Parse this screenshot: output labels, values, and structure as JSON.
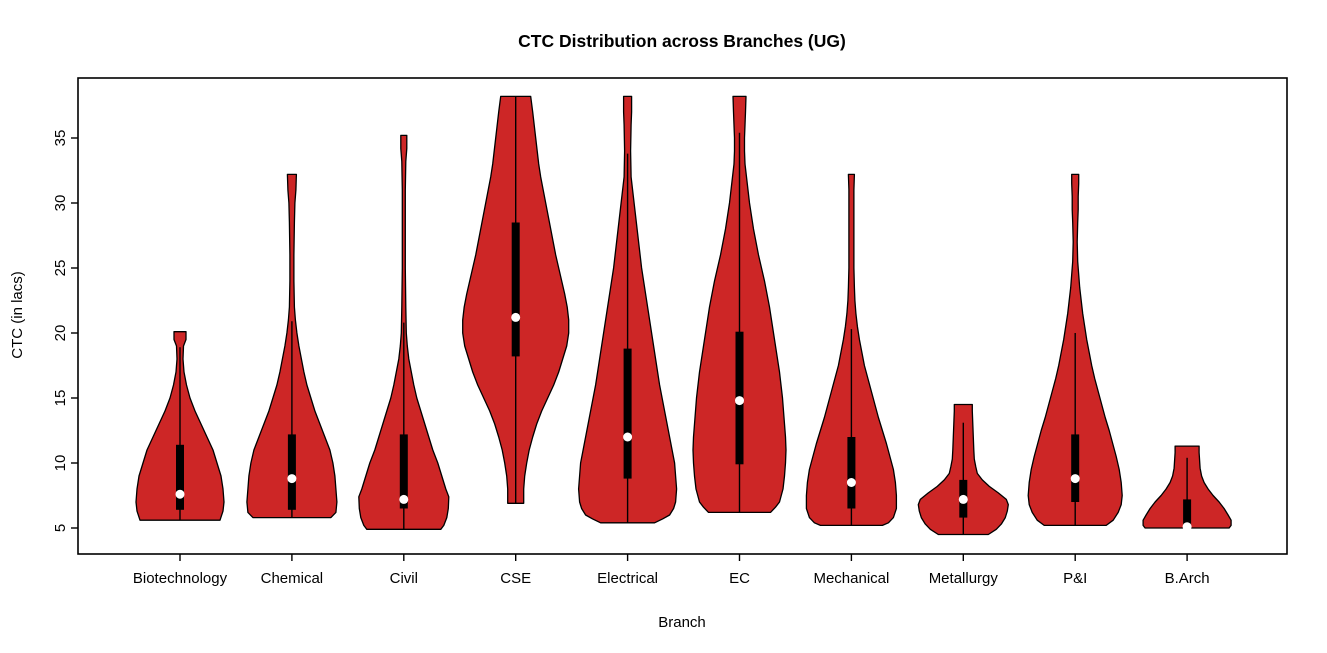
{
  "title": "CTC Distribution across Branches (UG)",
  "x_axis": {
    "label": "Branch",
    "categories": [
      "Biotechnology",
      "Chemical",
      "Civil",
      "CSE",
      "Electrical",
      "EC",
      "Mechanical",
      "Metallurgy",
      "P&I",
      "B.Arch"
    ]
  },
  "y_axis": {
    "label": "CTC (in lacs)",
    "ticks": [
      5,
      10,
      15,
      20,
      25,
      30,
      35
    ]
  },
  "colors": {
    "violin_fill": "#CD2626",
    "outline": "#000000",
    "box_fill": "#000000",
    "median_dot": "#FFFFFF",
    "background": "#FFFFFF"
  },
  "chart_data": {
    "type": "violin",
    "title": "CTC Distribution across Branches (UG)",
    "xlabel": "Branch",
    "ylabel": "CTC (in lacs)",
    "y_ticks": [
      5,
      10,
      15,
      20,
      25,
      30,
      35
    ],
    "ylim": [
      2.5,
      39.6
    ],
    "grid": "off",
    "legend": "none",
    "series": [
      {
        "name": "Biotechnology",
        "min": 5.6,
        "max": 20.1,
        "q1": 6.4,
        "median": 7.6,
        "q3": 11.4,
        "whisker_low": 5.6,
        "whisker_high": 18.9,
        "profile": [
          [
            20.1,
            6
          ],
          [
            19.5,
            6
          ],
          [
            19,
            3.5
          ],
          [
            18,
            3
          ],
          [
            17,
            4
          ],
          [
            16,
            6.5
          ],
          [
            15,
            10
          ],
          [
            14,
            15
          ],
          [
            13,
            21
          ],
          [
            12,
            27
          ],
          [
            11,
            33
          ],
          [
            10,
            37
          ],
          [
            9,
            41
          ],
          [
            8,
            43
          ],
          [
            7,
            44
          ],
          [
            6.3,
            43
          ],
          [
            5.6,
            40
          ]
        ]
      },
      {
        "name": "Chemical",
        "min": 5.8,
        "max": 32.2,
        "q1": 6.4,
        "median": 8.8,
        "q3": 12.2,
        "whisker_low": 5.8,
        "whisker_high": 20.9,
        "profile": [
          [
            32.2,
            4.5
          ],
          [
            31,
            4
          ],
          [
            30,
            3
          ],
          [
            28.5,
            2.5
          ],
          [
            26,
            2
          ],
          [
            24,
            2
          ],
          [
            22,
            2.5
          ],
          [
            21,
            3.5
          ],
          [
            20,
            5
          ],
          [
            19,
            7
          ],
          [
            18,
            9.5
          ],
          [
            17,
            12
          ],
          [
            16,
            15
          ],
          [
            15,
            19
          ],
          [
            14,
            23
          ],
          [
            13,
            28
          ],
          [
            12,
            33
          ],
          [
            11,
            38
          ],
          [
            10,
            41
          ],
          [
            9,
            43
          ],
          [
            8,
            44
          ],
          [
            7,
            45
          ],
          [
            6.2,
            44
          ],
          [
            5.8,
            39
          ]
        ]
      },
      {
        "name": "Civil",
        "min": 4.9,
        "max": 35.2,
        "q1": 6.5,
        "median": 7.2,
        "q3": 12.2,
        "whisker_low": 4.9,
        "whisker_high": 20.8,
        "profile": [
          [
            35.2,
            3
          ],
          [
            34.2,
            3
          ],
          [
            33.2,
            2
          ],
          [
            31,
            1.5
          ],
          [
            28,
            1.5
          ],
          [
            25,
            1.5
          ],
          [
            22,
            2
          ],
          [
            20,
            2.5
          ],
          [
            19,
            3.5
          ],
          [
            18,
            5
          ],
          [
            17,
            7.5
          ],
          [
            16,
            10
          ],
          [
            15,
            13
          ],
          [
            14,
            17
          ],
          [
            13,
            21
          ],
          [
            12,
            25
          ],
          [
            11,
            29
          ],
          [
            10,
            34
          ],
          [
            9,
            38
          ],
          [
            8,
            42
          ],
          [
            7.4,
            45
          ],
          [
            6.5,
            44.5
          ],
          [
            5.8,
            43
          ],
          [
            5.2,
            40
          ],
          [
            4.9,
            37
          ]
        ]
      },
      {
        "name": "CSE",
        "min": 6.9,
        "max": 38.2,
        "q1": 18.2,
        "median": 21.2,
        "q3": 28.5,
        "whisker_low": 6.9,
        "whisker_high": 38.2,
        "profile": [
          [
            38.2,
            15
          ],
          [
            37,
            17
          ],
          [
            36,
            18.5
          ],
          [
            35,
            20
          ],
          [
            34,
            21.5
          ],
          [
            33,
            23
          ],
          [
            32,
            25
          ],
          [
            31,
            27.5
          ],
          [
            30,
            30
          ],
          [
            29,
            32.5
          ],
          [
            28,
            35
          ],
          [
            27,
            37.5
          ],
          [
            26,
            40
          ],
          [
            25,
            43
          ],
          [
            24,
            46
          ],
          [
            23,
            49
          ],
          [
            22,
            51.5
          ],
          [
            21,
            53
          ],
          [
            20,
            53
          ],
          [
            19,
            51
          ],
          [
            18,
            47
          ],
          [
            17,
            43
          ],
          [
            16,
            38
          ],
          [
            15,
            32
          ],
          [
            14,
            26
          ],
          [
            13,
            21
          ],
          [
            12,
            17
          ],
          [
            11,
            13.5
          ],
          [
            10,
            11
          ],
          [
            9,
            9
          ],
          [
            8,
            8
          ],
          [
            7.3,
            8
          ],
          [
            6.9,
            8
          ]
        ]
      },
      {
        "name": "Electrical",
        "min": 5.4,
        "max": 38.2,
        "q1": 8.8,
        "median": 12.0,
        "q3": 18.8,
        "whisker_low": 5.4,
        "whisker_high": 33.8,
        "profile": [
          [
            38.2,
            4
          ],
          [
            37,
            4
          ],
          [
            36,
            3.5
          ],
          [
            34,
            3
          ],
          [
            32,
            3.5
          ],
          [
            31,
            5
          ],
          [
            30,
            6.5
          ],
          [
            29,
            8
          ],
          [
            28,
            9.5
          ],
          [
            27,
            11
          ],
          [
            26,
            12.5
          ],
          [
            25,
            14
          ],
          [
            24,
            16
          ],
          [
            23,
            18
          ],
          [
            22,
            20
          ],
          [
            21,
            22
          ],
          [
            20,
            24
          ],
          [
            19,
            26
          ],
          [
            18,
            28
          ],
          [
            17,
            30
          ],
          [
            16,
            32
          ],
          [
            15,
            34.5
          ],
          [
            14,
            37
          ],
          [
            13,
            39.5
          ],
          [
            12,
            42
          ],
          [
            11,
            44.5
          ],
          [
            10,
            47
          ],
          [
            9,
            48
          ],
          [
            8,
            49
          ],
          [
            7,
            48
          ],
          [
            6.5,
            46
          ],
          [
            6,
            42
          ],
          [
            5.7,
            35
          ],
          [
            5.4,
            27
          ]
        ]
      },
      {
        "name": "EC",
        "min": 6.2,
        "max": 38.2,
        "q1": 9.9,
        "median": 14.8,
        "q3": 20.1,
        "whisker_low": 6.2,
        "whisker_high": 35.4,
        "profile": [
          [
            38.2,
            6.5
          ],
          [
            37,
            6
          ],
          [
            36,
            5.5
          ],
          [
            35,
            5
          ],
          [
            34,
            5
          ],
          [
            33,
            5.5
          ],
          [
            32,
            7
          ],
          [
            31,
            8.5
          ],
          [
            30,
            10
          ],
          [
            29,
            12
          ],
          [
            28,
            14
          ],
          [
            27,
            16.5
          ],
          [
            26,
            19
          ],
          [
            25,
            22
          ],
          [
            24,
            25
          ],
          [
            23,
            27.5
          ],
          [
            22,
            30
          ],
          [
            21,
            32
          ],
          [
            20,
            34
          ],
          [
            19,
            36
          ],
          [
            18,
            38
          ],
          [
            17,
            40
          ],
          [
            16,
            41.5
          ],
          [
            15,
            43
          ],
          [
            14,
            44
          ],
          [
            13,
            45
          ],
          [
            12,
            46
          ],
          [
            11,
            46.5
          ],
          [
            10,
            46
          ],
          [
            9,
            45
          ],
          [
            8,
            43.5
          ],
          [
            7,
            40
          ],
          [
            6.6,
            36
          ],
          [
            6.2,
            31
          ]
        ]
      },
      {
        "name": "Mechanical",
        "min": 5.2,
        "max": 32.2,
        "q1": 6.5,
        "median": 8.5,
        "q3": 12.0,
        "whisker_low": 5.2,
        "whisker_high": 20.3,
        "profile": [
          [
            32.2,
            3
          ],
          [
            31,
            2.5
          ],
          [
            29,
            2.5
          ],
          [
            27,
            2.5
          ],
          [
            25,
            2.5
          ],
          [
            23.5,
            3
          ],
          [
            22.5,
            3.5
          ],
          [
            21.5,
            4.5
          ],
          [
            20.5,
            6
          ],
          [
            19.5,
            8
          ],
          [
            18.5,
            10.5
          ],
          [
            17.5,
            13
          ],
          [
            16.5,
            16.5
          ],
          [
            15.5,
            20
          ],
          [
            14.5,
            23.5
          ],
          [
            13.5,
            27
          ],
          [
            12.5,
            31
          ],
          [
            11.5,
            35
          ],
          [
            10.5,
            38.5
          ],
          [
            9.5,
            42
          ],
          [
            8.5,
            44
          ],
          [
            7.5,
            45
          ],
          [
            6.5,
            45
          ],
          [
            5.8,
            42
          ],
          [
            5.4,
            37
          ],
          [
            5.2,
            31
          ]
        ]
      },
      {
        "name": "Metallurgy",
        "min": 4.5,
        "max": 14.5,
        "q1": 5.8,
        "median": 7.2,
        "q3": 8.7,
        "whisker_low": 4.5,
        "whisker_high": 13.1,
        "profile": [
          [
            14.5,
            9
          ],
          [
            14,
            9
          ],
          [
            13,
            9.5
          ],
          [
            12,
            10
          ],
          [
            11,
            10.5
          ],
          [
            10.3,
            11
          ],
          [
            9.7,
            12.5
          ],
          [
            9.2,
            14
          ],
          [
            8.7,
            19
          ],
          [
            8.2,
            26
          ],
          [
            7.7,
            35
          ],
          [
            7.2,
            43
          ],
          [
            6.8,
            45
          ],
          [
            6.3,
            44
          ],
          [
            5.8,
            42
          ],
          [
            5.3,
            38
          ],
          [
            4.9,
            33
          ],
          [
            4.5,
            25
          ]
        ]
      },
      {
        "name": "P&I",
        "min": 5.2,
        "max": 32.2,
        "q1": 7.0,
        "median": 8.8,
        "q3": 12.2,
        "whisker_low": 5.2,
        "whisker_high": 20.0,
        "profile": [
          [
            32.2,
            3.5
          ],
          [
            31.5,
            3.5
          ],
          [
            30.5,
            3
          ],
          [
            29.5,
            3
          ],
          [
            28.5,
            2.5
          ],
          [
            27,
            2
          ],
          [
            25.5,
            2.5
          ],
          [
            24.5,
            3.5
          ],
          [
            23.5,
            4.5
          ],
          [
            22.5,
            6
          ],
          [
            21.5,
            7.5
          ],
          [
            20.5,
            9.5
          ],
          [
            19.5,
            11.5
          ],
          [
            18.5,
            14
          ],
          [
            17.5,
            16.5
          ],
          [
            16.5,
            19.5
          ],
          [
            15.5,
            23
          ],
          [
            14.5,
            26.5
          ],
          [
            13.5,
            30
          ],
          [
            12.5,
            34
          ],
          [
            11.5,
            37.5
          ],
          [
            10.5,
            41
          ],
          [
            9.5,
            44
          ],
          [
            8.5,
            46
          ],
          [
            7.5,
            47
          ],
          [
            6.8,
            46
          ],
          [
            6.2,
            43
          ],
          [
            5.6,
            38
          ],
          [
            5.2,
            31
          ]
        ]
      },
      {
        "name": "B.Arch",
        "min": 5.0,
        "max": 11.3,
        "q1": 5.1,
        "median": 5.1,
        "q3": 7.2,
        "whisker_low": 5.0,
        "whisker_high": 10.4,
        "profile": [
          [
            11.3,
            12
          ],
          [
            10.8,
            12
          ],
          [
            10.2,
            12.5
          ],
          [
            9.6,
            13
          ],
          [
            9,
            14.5
          ],
          [
            8.5,
            17
          ],
          [
            8,
            21
          ],
          [
            7.5,
            26
          ],
          [
            7,
            32
          ],
          [
            6.5,
            37
          ],
          [
            6,
            41
          ],
          [
            5.6,
            44
          ],
          [
            5.2,
            44
          ],
          [
            5,
            42
          ]
        ]
      }
    ]
  }
}
